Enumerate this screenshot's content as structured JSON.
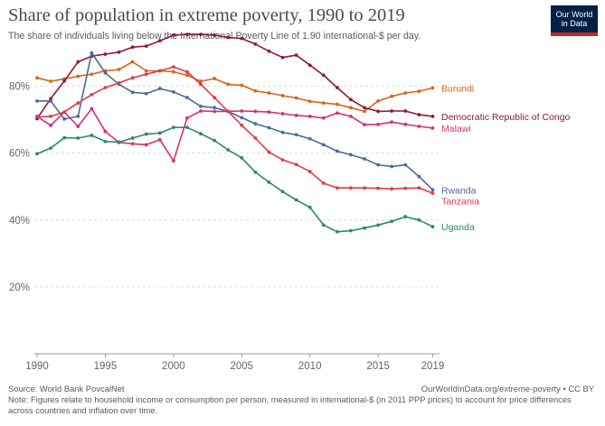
{
  "title": "Share of population in extreme poverty, 1990 to 2019",
  "subtitle": "The share of individuals living below the International Poverty Line of 1.90 international-$ per day.",
  "logo": {
    "line1": "Our World",
    "line2": "in Data"
  },
  "source": "Source: World Bank PovcalNet",
  "url": "OurWorldInData.org/extreme-poverty • CC BY",
  "note": "Note: Figures relate to household income or consumption per person, measured in international-$ (in 2011 PPP prices) to account for price differences across countries and inflation over time.",
  "chart_data": {
    "type": "line",
    "x_label": "",
    "y_label": "",
    "xlim": [
      1989.8,
      2019.5
    ],
    "ylim": [
      0,
      95
    ],
    "x_ticks": [
      1990,
      1995,
      2000,
      2005,
      2010,
      2015,
      2019
    ],
    "y_ticks": [
      {
        "value": 20,
        "label": "20%"
      },
      {
        "value": 40,
        "label": "40%"
      },
      {
        "value": 60,
        "label": "60%"
      },
      {
        "value": 80,
        "label": "80%"
      }
    ],
    "grid": true,
    "x": [
      1990,
      1991,
      1992,
      1993,
      1994,
      1995,
      1996,
      1997,
      1998,
      1999,
      2000,
      2001,
      2002,
      2003,
      2004,
      2005,
      2006,
      2007,
      2008,
      2009,
      2010,
      2011,
      2012,
      2013,
      2014,
      2015,
      2016,
      2017,
      2018,
      2019
    ],
    "series": [
      {
        "name": "Burundi",
        "color": "#d1671c",
        "values": [
          82.5,
          81.5,
          82.2,
          83.0,
          83.6,
          84.6,
          85.0,
          87.3,
          84.6,
          84.6,
          84.3,
          83.3,
          81.5,
          82.3,
          80.6,
          80.3,
          78.6,
          78.0,
          77.2,
          76.5,
          75.5,
          75.0,
          74.6,
          73.6,
          72.5,
          75.6,
          77.0,
          78.0,
          78.5,
          79.5
        ]
      },
      {
        "name": "Democratic Republic of Congo",
        "color": "#8c1c32",
        "values": [
          70.3,
          76.3,
          81.6,
          87.3,
          89.0,
          89.6,
          90.2,
          91.7,
          92.0,
          93.6,
          95.3,
          95.5,
          95.5,
          95.3,
          94.6,
          94.3,
          92.6,
          90.5,
          88.6,
          89.3,
          86.3,
          83.3,
          79.6,
          76.0,
          73.6,
          72.5,
          72.6,
          72.6,
          71.5,
          71.0
        ]
      },
      {
        "name": "Malawi",
        "color": "#d5307a",
        "values": [
          71.0,
          68.3,
          72.3,
          68.0,
          73.3,
          66.5,
          63.2,
          62.8,
          62.5,
          64.0,
          57.7,
          70.5,
          72.6,
          72.5,
          72.5,
          72.6,
          72.5,
          72.3,
          71.8,
          71.3,
          71.0,
          70.5,
          72.0,
          71.0,
          68.5,
          68.6,
          69.3,
          68.6,
          68.0,
          67.5
        ]
      },
      {
        "name": "Rwanda",
        "color": "#4c6a9c",
        "values": [
          75.6,
          75.6,
          70.2,
          71.0,
          90.0,
          84.0,
          80.6,
          78.2,
          77.8,
          79.3,
          78.3,
          76.6,
          74.0,
          73.6,
          72.5,
          70.6,
          68.8,
          67.6,
          66.2,
          65.5,
          64.3,
          62.5,
          60.6,
          59.5,
          58.3,
          56.5,
          56.0,
          56.5,
          53.0,
          49.0
        ]
      },
      {
        "name": "Tanzania",
        "color": "#e03b49",
        "values": [
          70.8,
          71.0,
          72.3,
          75.0,
          77.5,
          79.6,
          81.0,
          82.5,
          83.6,
          84.6,
          85.8,
          84.3,
          80.6,
          76.6,
          72.5,
          68.3,
          64.5,
          60.3,
          58.0,
          56.6,
          54.5,
          51.0,
          49.6,
          49.6,
          49.6,
          49.5,
          49.3,
          49.5,
          49.6,
          48.0
        ]
      },
      {
        "name": "Uganda",
        "color": "#2a8a6a",
        "values": [
          59.8,
          61.5,
          64.6,
          64.5,
          65.3,
          63.5,
          63.3,
          64.5,
          65.7,
          66.0,
          67.7,
          67.7,
          65.8,
          63.8,
          61.0,
          58.6,
          54.3,
          51.3,
          48.5,
          46.0,
          43.8,
          38.5,
          36.5,
          36.8,
          37.6,
          38.5,
          39.6,
          41.0,
          40.0,
          38.0
        ]
      }
    ]
  }
}
